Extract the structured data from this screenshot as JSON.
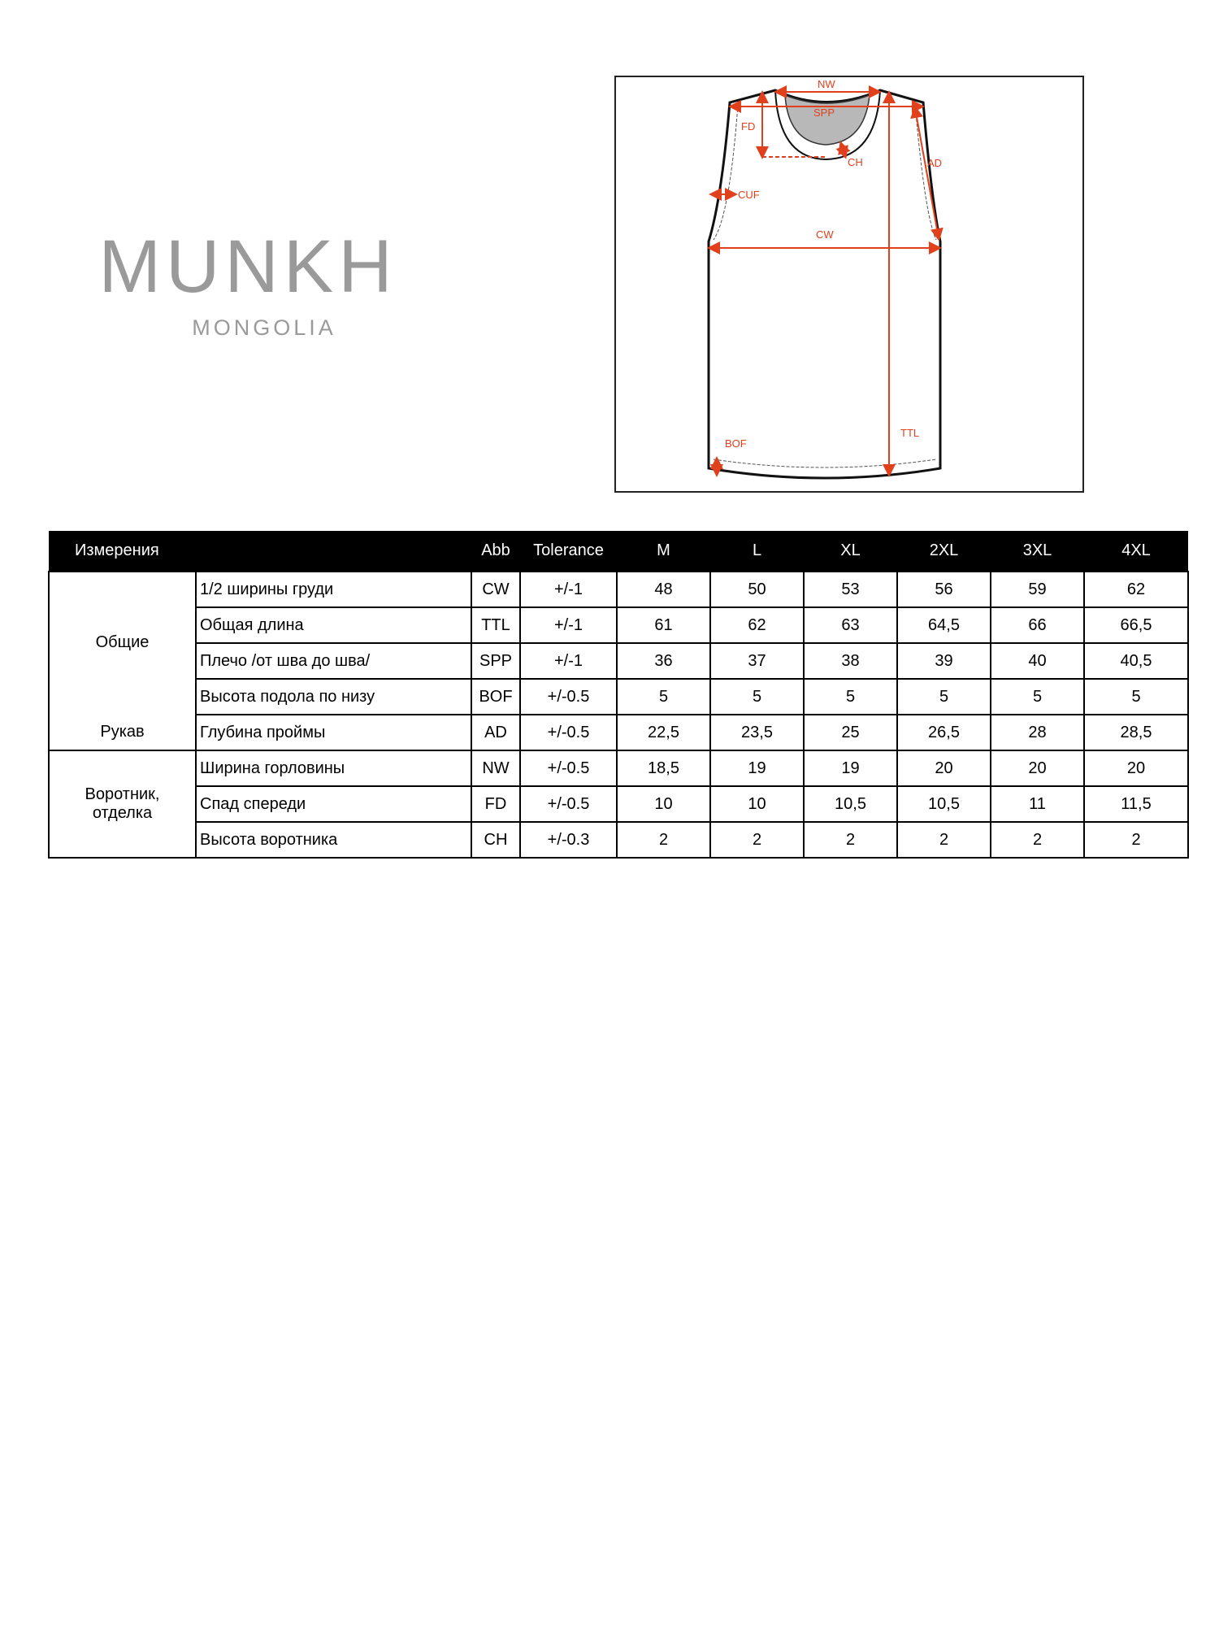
{
  "logo": {
    "brand": "MUNKH",
    "subtitle": "MONGOLIA"
  },
  "diagram": {
    "labels": {
      "nw": "NW",
      "spp": "SPP",
      "fd": "FD",
      "ch": "CH",
      "ad": "AD",
      "cuf": "CUF",
      "cw": "CW",
      "ttl": "TTL",
      "bof": "BOF"
    },
    "colors": {
      "measure": "#e0401c",
      "outline": "#111111",
      "neck_inner": "#b8b8b8"
    }
  },
  "table": {
    "headers": {
      "measurement": "Измерения",
      "abb": "Abb",
      "tolerance": "Tolerance",
      "sizes": [
        "M",
        "L",
        "XL",
        "2XL",
        "3XL",
        "4XL"
      ]
    },
    "groups": {
      "general": "Общие",
      "sleeve": "Рукав",
      "collar": "Воротник, отделка"
    },
    "rows": [
      {
        "name": "1/2 ширины груди",
        "abb": "CW",
        "tol": "+/-1",
        "v": [
          "48",
          "50",
          "53",
          "56",
          "59",
          "62"
        ]
      },
      {
        "name": "Общая длина",
        "abb": "TTL",
        "tol": "+/-1",
        "v": [
          "61",
          "62",
          "63",
          "64,5",
          "66",
          "66,5"
        ]
      },
      {
        "name": "Плечо /от шва до шва/",
        "abb": "SPP",
        "tol": "+/-1",
        "v": [
          "36",
          "37",
          "38",
          "39",
          "40",
          "40,5"
        ]
      },
      {
        "name": "Высота подола по низу",
        "abb": "BOF",
        "tol": "+/-0.5",
        "v": [
          "5",
          "5",
          "5",
          "5",
          "5",
          "5"
        ]
      },
      {
        "name": "Глубина проймы",
        "abb": "AD",
        "tol": "+/-0.5",
        "v": [
          "22,5",
          "23,5",
          "25",
          "26,5",
          "28",
          "28,5"
        ]
      },
      {
        "name": "Ширина горловины",
        "abb": "NW",
        "tol": "+/-0.5",
        "v": [
          "18,5",
          "19",
          "19",
          "20",
          "20",
          "20"
        ]
      },
      {
        "name": "Спад спереди",
        "abb": "FD",
        "tol": "+/-0.5",
        "v": [
          "10",
          "10",
          "10,5",
          "10,5",
          "11",
          "11,5"
        ]
      },
      {
        "name": "Высота воротника",
        "abb": "CH",
        "tol": "+/-0.3",
        "v": [
          "2",
          "2",
          "2",
          "2",
          "2",
          "2"
        ]
      }
    ]
  }
}
